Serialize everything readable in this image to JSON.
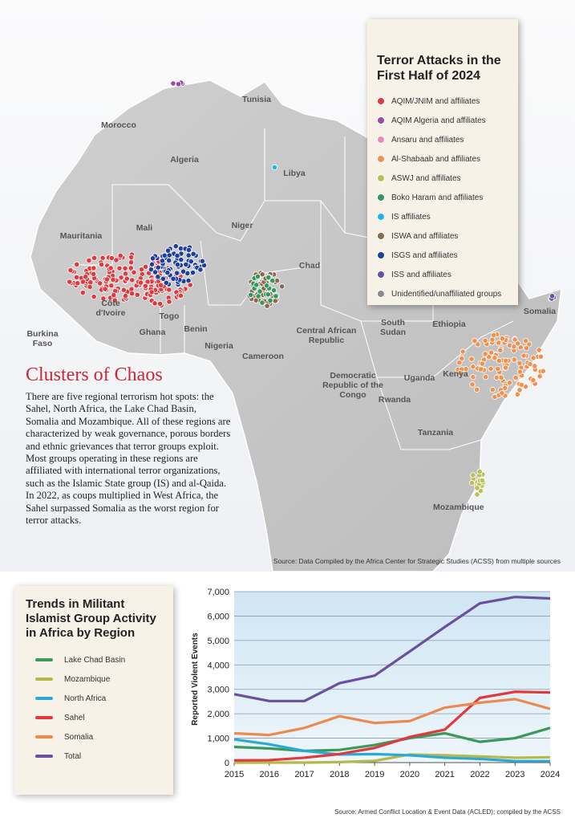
{
  "map": {
    "legend_title": "Terror Attacks in the First Half of 2024",
    "legend": [
      {
        "name": "AQIM/JNIM and affiliates",
        "color": "#e0393e"
      },
      {
        "name": "AQIM Algeria and affiliates",
        "color": "#9b4aa8"
      },
      {
        "name": "Ansaru and affiliates",
        "color": "#e889c2"
      },
      {
        "name": "Al-Shabaab and affiliates",
        "color": "#f0914f"
      },
      {
        "name": "ASWJ and affiliates",
        "color": "#b9c05a"
      },
      {
        "name": "Boko Haram and affiliates",
        "color": "#2f9a5a"
      },
      {
        "name": "IS affiliates",
        "color": "#21b5e3"
      },
      {
        "name": "ISWA and affiliates",
        "color": "#8a6a4e"
      },
      {
        "name": "ISGS and affiliates",
        "color": "#1f3f9e"
      },
      {
        "name": "ISS and affiliates",
        "color": "#6a4fa3"
      },
      {
        "name": "Unidentified/unaffiliated groups",
        "color": "#8a8a8a"
      }
    ],
    "countries": [
      "Tunisia",
      "Morocco",
      "Algeria",
      "Libya",
      "Mauritania",
      "Mali",
      "Niger",
      "Chad",
      "Burkina Faso",
      "Côte d'Ivoire",
      "Ghana",
      "Togo",
      "Benin",
      "Nigeria",
      "Cameroon",
      "Central African Republic",
      "South Sudan",
      "Ethiopia",
      "Somalia",
      "Kenya",
      "Uganda",
      "Rwanda",
      "Democratic Republic of the Congo",
      "Tanzania",
      "Mozambique"
    ],
    "source": "Source: Data Compiled by the Africa Center for Strategic Studies (ACSS) from multiple sources"
  },
  "article": {
    "heading": "Clusters of Chaos",
    "body": "There are five regional terrorism hot spots: the Sahel, North Africa, the Lake Chad Basin, Somalia and Mozambique. All of these regions are characterized by weak governance, porous borders and ethnic grievances that terror groups exploit. Most groups operating in these regions are affiliated with international terror organizations, such as the Islamic State group (IS) and al-Qaida. In 2022, as coups multiplied in West Africa, the Sahel surpassed Somalia as the worst region for terror attacks."
  },
  "chart_data": {
    "type": "line",
    "title": "Trends in Militant Islamist Group Activity in Africa by Region",
    "y_label": "Reported Violent Events",
    "x": [
      2015,
      2016,
      2017,
      2018,
      2019,
      2020,
      2021,
      2022,
      2023,
      2024
    ],
    "xlim": [
      2015,
      2024
    ],
    "ylim": [
      0,
      7000
    ],
    "yticks": [
      0,
      {
        "value": 1000,
        "label": "1,000"
      },
      {
        "value": 2000,
        "label": "2,000"
      },
      {
        "value": 3000,
        "label": "3,000"
      },
      {
        "value": 4000,
        "label": "4,000"
      },
      {
        "value": 5000,
        "label": "5,000"
      },
      {
        "value": 6000,
        "label": "6,000"
      },
      {
        "value": 7000,
        "label": "7,000"
      }
    ],
    "grid": true,
    "series": [
      {
        "name": "Lake Chad Basin",
        "color": "#3a9a5a",
        "values": [
          640,
          580,
          480,
          520,
          720,
          1000,
          1200,
          850,
          1000,
          1420
        ]
      },
      {
        "name": "Mozambique",
        "color": "#b5b84a",
        "values": [
          0,
          0,
          0,
          20,
          70,
          330,
          300,
          250,
          200,
          220
        ]
      },
      {
        "name": "North Africa",
        "color": "#2aa9d8",
        "values": [
          950,
          750,
          480,
          330,
          350,
          300,
          200,
          150,
          60,
          60
        ]
      },
      {
        "name": "Sahel",
        "color": "#e0393e",
        "values": [
          90,
          100,
          200,
          350,
          600,
          1050,
          1350,
          2650,
          2900,
          2870
        ]
      },
      {
        "name": "Somalia",
        "color": "#eb8a4e",
        "values": [
          1200,
          1130,
          1420,
          1900,
          1620,
          1700,
          2250,
          2450,
          2600,
          2200
        ]
      },
      {
        "name": "Total",
        "color": "#6b4fa0",
        "values": [
          2800,
          2520,
          2520,
          3250,
          3560,
          4550,
          5550,
          6520,
          6780,
          6720
        ]
      }
    ],
    "source": "Source: Armed Conflict Location & Event Data (ACLED); compiled by the ACSS"
  }
}
